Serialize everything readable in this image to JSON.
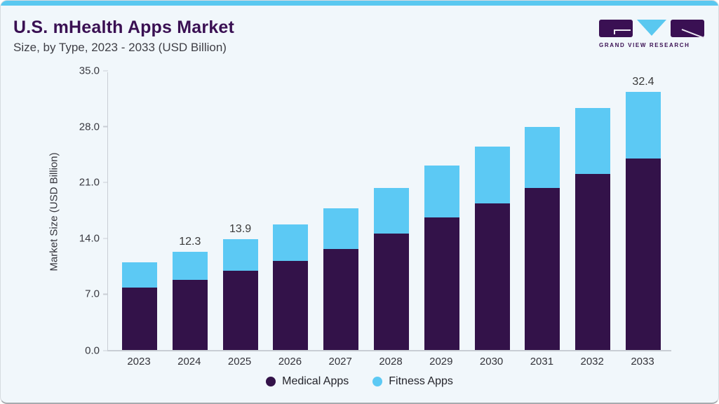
{
  "header": {
    "title": "U.S. mHealth Apps Market",
    "subtitle": "Size, by Type, 2023 - 2033 (USD Billion)"
  },
  "logo": {
    "company": "Grand View Research",
    "text": "GRAND VIEW RESEARCH",
    "brand_purple": "#3a1053",
    "brand_blue": "#5ac8f0"
  },
  "chart_data": {
    "type": "bar",
    "stacked": true,
    "categories": [
      "2023",
      "2024",
      "2025",
      "2026",
      "2027",
      "2028",
      "2029",
      "2030",
      "2031",
      "2032",
      "2033"
    ],
    "series": [
      {
        "name": "Medical Apps",
        "color": "#331249",
        "values": [
          7.8,
          8.8,
          9.9,
          11.2,
          12.7,
          14.6,
          16.6,
          18.4,
          20.3,
          22.1,
          24.0
        ]
      },
      {
        "name": "Fitness Apps",
        "color": "#5cc9f4",
        "values": [
          3.2,
          3.5,
          4.0,
          4.5,
          5.1,
          5.7,
          6.5,
          7.1,
          7.7,
          8.2,
          8.4
        ]
      }
    ],
    "totals": [
      11.0,
      12.3,
      13.9,
      15.7,
      17.8,
      20.3,
      23.1,
      25.5,
      28.0,
      30.3,
      32.4
    ],
    "total_labels": [
      "",
      "12.3",
      "13.9",
      "",
      "",
      "",
      "",
      "",
      "",
      "",
      "32.4"
    ],
    "ylabel": "Market Size (USD Billion)",
    "yticks": [
      0.0,
      7.0,
      14.0,
      21.0,
      28.0,
      35.0
    ],
    "ytick_labels": [
      "0.0",
      "7.0",
      "14.0",
      "21.0",
      "28.0",
      "35.0"
    ],
    "ylim": [
      0,
      35
    ],
    "grid": false,
    "legend_position": "bottom"
  }
}
